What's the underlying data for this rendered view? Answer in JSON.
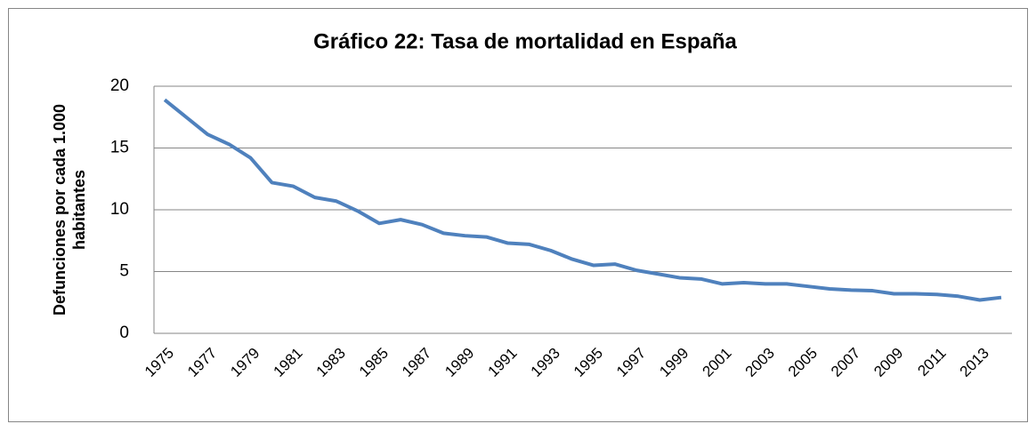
{
  "chart_data": {
    "type": "line",
    "title": "Gráfico 22: Tasa de mortalidad en España",
    "ylabel": [
      "Defunciones por cada 1.000",
      "habitantes"
    ],
    "categories": [
      "1975",
      null,
      "1977",
      null,
      "1979",
      null,
      "1981",
      null,
      "1983",
      null,
      "1985",
      null,
      "1987",
      null,
      "1989",
      null,
      "1991",
      null,
      "1993",
      null,
      "1995",
      null,
      "1997",
      null,
      "1999",
      null,
      "2001",
      null,
      "2003",
      null,
      "2005",
      null,
      "2007",
      null,
      "2009",
      null,
      "2011",
      null,
      "2013",
      null
    ],
    "series": [
      {
        "color": "#4f81bd",
        "values": [
          18.9,
          17.5,
          16.1,
          15.3,
          14.2,
          12.2,
          11.9,
          11.0,
          10.7,
          9.9,
          8.9,
          9.2,
          8.8,
          8.1,
          7.9,
          7.8,
          7.3,
          7.2,
          6.7,
          6.0,
          5.5,
          5.6,
          5.1,
          4.8,
          4.5,
          4.4,
          4.0,
          4.1,
          4.0,
          4.0,
          3.8,
          3.6,
          3.5,
          3.45,
          3.2,
          3.2,
          3.15,
          3.0,
          2.7,
          2.9
        ]
      }
    ],
    "ylim": [
      0,
      20
    ],
    "yticks": [
      0,
      5,
      10,
      15,
      20
    ],
    "grid": true
  }
}
